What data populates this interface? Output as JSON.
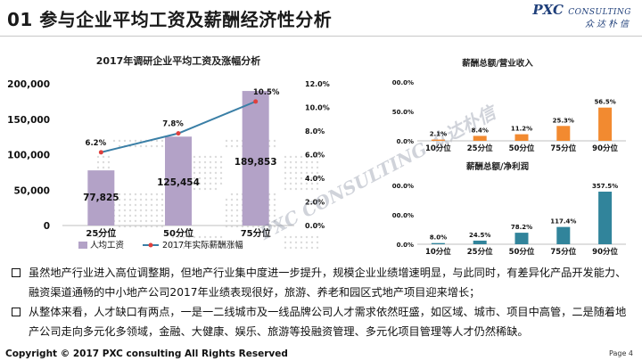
{
  "page": {
    "title": "01 参与企业平均工资及薪酬经济性分析",
    "logo_main": "PXC",
    "logo_sub": "CONSULTING",
    "logo_cn": "众达朴信",
    "watermark": "PXC CONSULTING 众达朴信",
    "footer": "Copyright © 2017 PXC consulting All Rights Reserved",
    "page_num": "Page 4"
  },
  "colors": {
    "bar_purple": "#b3a2c7",
    "line_teal": "#3a7fa6",
    "bar_orange": "#f28a30",
    "bar_teal": "#31849b",
    "marker_red": "#e0403d"
  },
  "bullets": [
    "虽然地产行业进入高位调整期，但地产行业集中度进一步提升，规模企业业绩增速明显，与此同时，有差异化产品开发能力、融资渠道通畅的中小地产公司2017年业绩表现很好，旅游、养老和园区式地产项目迎来增长；",
    "从整体来看，人才缺口有两点，一是一二线城市及一线品牌公司人才需求依然旺盛，如区域、城市、项目中高管，二是随着地产公司走向多元化多领域，金融、大健康、娱乐、旅游等投融资管理、多元化项目管理等人才仍然稀缺。"
  ],
  "chart_data": [
    {
      "type": "bar",
      "title": "2017年调研企业平均工资及涨幅分析",
      "categories": [
        "25分位",
        "50分位",
        "75分位"
      ],
      "series": [
        {
          "name": "人均工资",
          "type": "bar",
          "axis": "left",
          "values": [
            77825,
            125454,
            189853
          ],
          "labels": [
            "77,825",
            "125,454",
            "189,853"
          ]
        },
        {
          "name": "2017年实际薪酬涨幅",
          "type": "line",
          "axis": "right",
          "values": [
            6.2,
            7.8,
            10.5
          ],
          "labels": [
            "6.2%",
            "7.8%",
            "10.5%"
          ]
        }
      ],
      "ylim": [
        0,
        200000
      ],
      "yticks": [
        "0",
        "50,000",
        "100,000",
        "150,000",
        "200,000"
      ],
      "y2lim": [
        0,
        12
      ],
      "y2ticks": [
        "0.0%",
        "2.0%",
        "4.0%",
        "6.0%",
        "8.0%",
        "10.0%",
        "12.0%"
      ],
      "legend": "bottom"
    },
    {
      "type": "bar",
      "title": "薪酬总额/营业收入",
      "categories": [
        "10分位",
        "25分位",
        "50分位",
        "75分位",
        "90分位"
      ],
      "values": [
        2.1,
        8.4,
        11.2,
        25.3,
        56.5
      ],
      "labels": [
        "2.1%",
        "8.4%",
        "11.2%",
        "25.3%",
        "56.5%"
      ],
      "ylim": [
        0,
        100
      ],
      "yticks": [
        "0.0%",
        "50.0%",
        "100.0%"
      ]
    },
    {
      "type": "bar",
      "title": "薪酬总额/净利润",
      "categories": [
        "10分位",
        "25分位",
        "50分位",
        "75分位",
        "90分位"
      ],
      "values": [
        8.0,
        24.5,
        78.2,
        117.4,
        357.5
      ],
      "labels": [
        "8.0%",
        "24.5%",
        "78.2%",
        "117.4%",
        "357.5%"
      ],
      "ylim": [
        0,
        400
      ],
      "yticks": [
        "0.0%",
        "200.0%",
        "400.0%"
      ]
    }
  ]
}
